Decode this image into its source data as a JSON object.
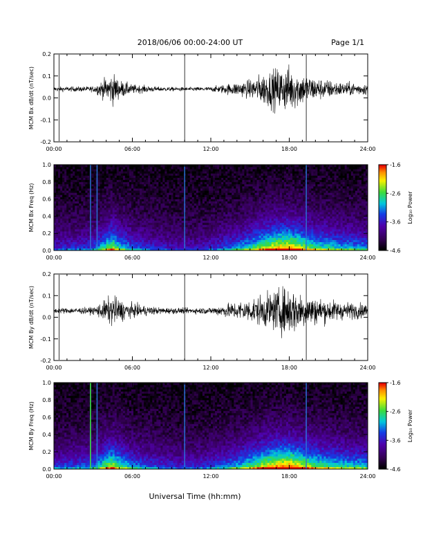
{
  "header": {
    "title": "2018/06/06  00:00-24:00 UT",
    "page": "Page 1/1"
  },
  "x_axis_title": "Universal Time (hh:mm)",
  "colorbar": {
    "label": "Log₁₀ Power",
    "ticks": [
      "-1.6",
      "-2.6",
      "-3.6",
      "-4.6"
    ]
  },
  "chart_data": [
    {
      "type": "line",
      "ylabel": "MCM Bx dB/dt (nT/sec)",
      "xlabel": "",
      "xlim": [
        0,
        24
      ],
      "ylim": [
        -0.2,
        0.2
      ],
      "xticks": [
        "00:00",
        "06:00",
        "12:00",
        "18:00",
        "24:00"
      ],
      "yticks": [
        "0.2",
        "0.1",
        "0.0",
        "-0.1",
        "-0.2"
      ],
      "baseline": 0.04,
      "activity_envelope": {
        "hours": [
          0,
          3,
          4,
          4.5,
          5,
          6,
          8,
          10,
          12,
          14,
          15,
          16,
          17,
          18,
          19,
          20,
          22,
          24
        ],
        "amplitude": [
          0.01,
          0.012,
          0.05,
          0.07,
          0.04,
          0.02,
          0.01,
          0.008,
          0.01,
          0.03,
          0.04,
          0.07,
          0.09,
          0.1,
          0.07,
          0.05,
          0.03,
          0.025
        ]
      },
      "spikes_hours": [
        0.4,
        10.0,
        19.3
      ]
    },
    {
      "type": "heatmap",
      "ylabel": "MCM Bx Freq (Hz)",
      "xlabel": "",
      "xlim": [
        0,
        24
      ],
      "ylim": [
        0.0,
        1.0
      ],
      "xticks": [
        "00:00",
        "06:00",
        "12:00",
        "18:00",
        "24:00"
      ],
      "yticks": [
        "1.0",
        "0.8",
        "0.6",
        "0.4",
        "0.2",
        "0.0"
      ],
      "z_range": [
        -4.6,
        -1.6
      ],
      "activity_envelope": {
        "hours": [
          0,
          3,
          4,
          4.5,
          5,
          6,
          8,
          10,
          12,
          14,
          15,
          16,
          17,
          18,
          19,
          20,
          22,
          24
        ],
        "level": [
          0.3,
          0.35,
          0.6,
          0.7,
          0.55,
          0.4,
          0.3,
          0.25,
          0.3,
          0.45,
          0.55,
          0.7,
          0.8,
          0.85,
          0.7,
          0.6,
          0.5,
          0.45
        ]
      },
      "vertical_lines_hours": [
        2.8,
        3.3,
        10.0,
        19.3
      ]
    },
    {
      "type": "line",
      "ylabel": "MCM By dB/dt (nT/sec)",
      "xlabel": "",
      "xlim": [
        0,
        24
      ],
      "ylim": [
        -0.2,
        0.2
      ],
      "xticks": [
        "00:00",
        "06:00",
        "12:00",
        "18:00",
        "24:00"
      ],
      "yticks": [
        "0.2",
        "0.1",
        "0.0",
        "-0.1",
        "-0.2"
      ],
      "baseline": 0.03,
      "activity_envelope": {
        "hours": [
          0,
          3,
          4,
          4.5,
          5,
          6,
          8,
          10,
          12,
          14,
          15,
          16,
          17,
          18,
          19,
          20,
          22,
          24
        ],
        "amplitude": [
          0.012,
          0.015,
          0.05,
          0.07,
          0.05,
          0.03,
          0.015,
          0.012,
          0.015,
          0.04,
          0.05,
          0.07,
          0.09,
          0.11,
          0.08,
          0.06,
          0.04,
          0.03
        ]
      },
      "spikes_hours": [
        0.4,
        10.0,
        19.3
      ]
    },
    {
      "type": "heatmap",
      "ylabel": "MCM By Freq (Hz)",
      "xlabel": "",
      "xlim": [
        0,
        24
      ],
      "ylim": [
        0.0,
        1.0
      ],
      "xticks": [
        "00:00",
        "06:00",
        "12:00",
        "18:00",
        "24:00"
      ],
      "yticks": [
        "1.0",
        "0.8",
        "0.6",
        "0.4",
        "0.2",
        "0.0"
      ],
      "z_range": [
        -4.6,
        -1.6
      ],
      "activity_envelope": {
        "hours": [
          0,
          3,
          4,
          4.5,
          5,
          6,
          8,
          10,
          12,
          14,
          15,
          16,
          17,
          18,
          19,
          20,
          22,
          24
        ],
        "level": [
          0.35,
          0.4,
          0.65,
          0.75,
          0.6,
          0.45,
          0.35,
          0.3,
          0.35,
          0.5,
          0.6,
          0.75,
          0.85,
          0.9,
          0.75,
          0.65,
          0.55,
          0.5
        ]
      },
      "vertical_lines_hours": [
        2.8,
        3.3,
        10.0,
        19.3
      ],
      "green_line_hours": 2.8
    }
  ]
}
